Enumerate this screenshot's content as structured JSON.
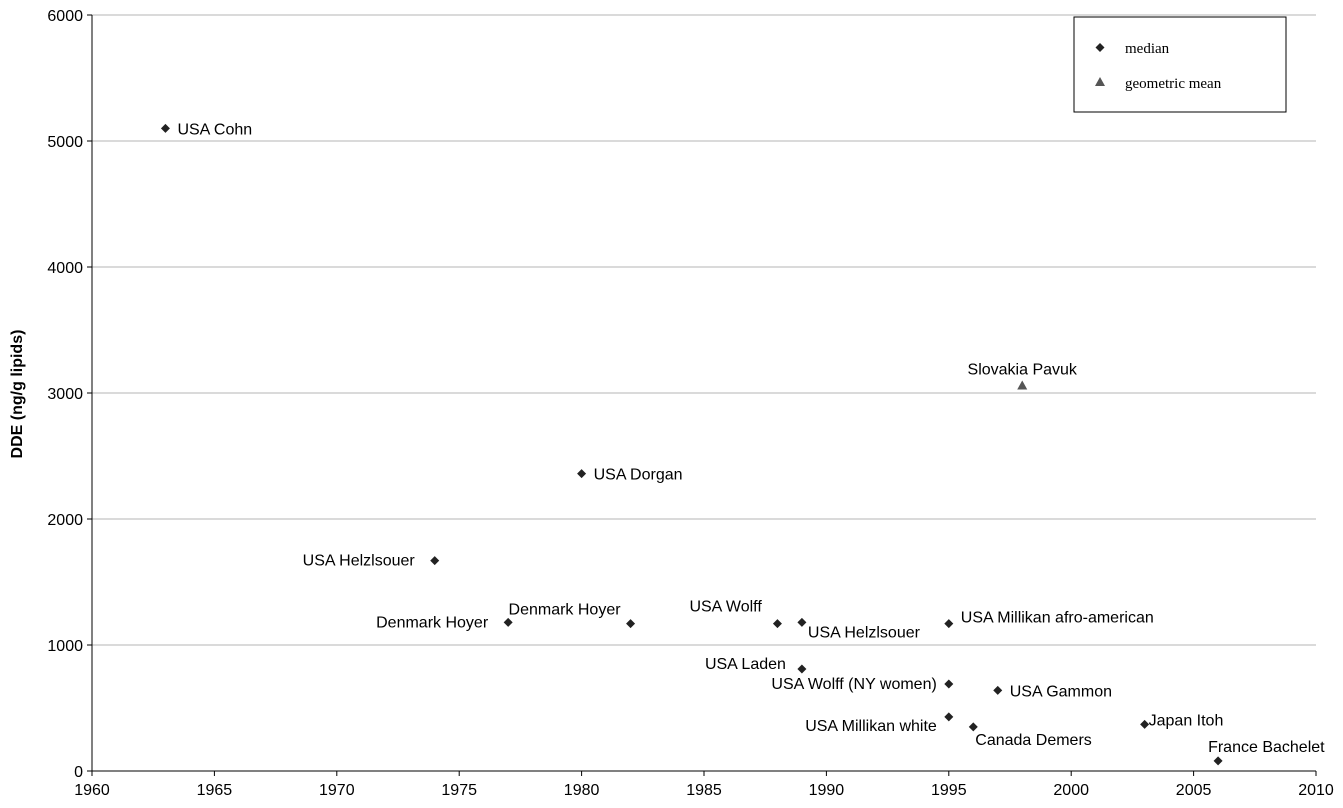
{
  "chart_data": {
    "type": "scatter",
    "title": "",
    "xlabel": "",
    "ylabel": "DDE (ng/g lipids)",
    "xlim": [
      1960,
      2010
    ],
    "ylim": [
      0,
      6000
    ],
    "x_ticks": [
      1960,
      1965,
      1970,
      1975,
      1980,
      1985,
      1990,
      1995,
      2000,
      2005,
      2010
    ],
    "y_ticks": [
      0,
      1000,
      2000,
      3000,
      4000,
      5000,
      6000
    ],
    "grid": "horizontal",
    "legend_position": "top-right",
    "series": [
      {
        "name": "median",
        "marker": "diamond",
        "color": "#222222",
        "points": [
          {
            "x": 1963,
            "y": 5100,
            "label": "USA Cohn"
          },
          {
            "x": 1980,
            "y": 2360,
            "label": "USA Dorgan"
          },
          {
            "x": 1974,
            "y": 1670,
            "label": "USA Helzlsouer"
          },
          {
            "x": 1977,
            "y": 1180,
            "label": "Denmark Hoyer"
          },
          {
            "x": 1982,
            "y": 1170,
            "label": "Denmark Hoyer"
          },
          {
            "x": 1988,
            "y": 1170,
            "label": "USA Wolff"
          },
          {
            "x": 1989,
            "y": 1180,
            "label": "USA Helzlsouer"
          },
          {
            "x": 1995,
            "y": 1170,
            "label": "USA Millikan afro-american"
          },
          {
            "x": 1989,
            "y": 810,
            "label": "USA Laden"
          },
          {
            "x": 1995,
            "y": 690,
            "label": "USA Wolff (NY women)"
          },
          {
            "x": 1997,
            "y": 640,
            "label": "USA Gammon"
          },
          {
            "x": 1995,
            "y": 430,
            "label": "USA Millikan white"
          },
          {
            "x": 1996,
            "y": 350,
            "label": "Canada Demers"
          },
          {
            "x": 2003,
            "y": 370,
            "label": "Japan Itoh"
          },
          {
            "x": 2006,
            "y": 80,
            "label": "France Bachelet"
          }
        ]
      },
      {
        "name": "geometric mean",
        "marker": "triangle",
        "color": "#555555",
        "points": [
          {
            "x": 1998,
            "y": 3060,
            "label": "Slovakia Pavuk"
          }
        ]
      }
    ]
  }
}
